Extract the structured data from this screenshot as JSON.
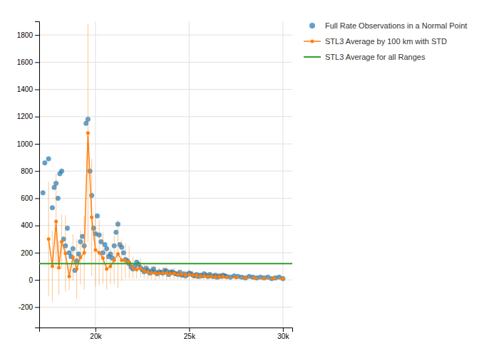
{
  "chart_data": {
    "type": "scatter",
    "xlim": [
      17000,
      30500
    ],
    "ylim": [
      -350,
      1900
    ],
    "xticks": [
      {
        "value": 20000,
        "label": "20k"
      },
      {
        "value": 25000,
        "label": "25k"
      },
      {
        "value": 30000,
        "label": "30k"
      }
    ],
    "yticks": [
      -200,
      0,
      200,
      400,
      600,
      800,
      1000,
      1200,
      1400,
      1600,
      1800
    ],
    "grid": true,
    "legend": "right",
    "series": [
      {
        "name": "Full Rate Observations in a Normal Point",
        "type": "scatter",
        "x": [
          17200,
          17300,
          17500,
          17700,
          17800,
          17900,
          18000,
          18100,
          18200,
          18300,
          18400,
          18500,
          18600,
          18700,
          18800,
          18900,
          19000,
          19100,
          19200,
          19300,
          19400,
          19500,
          19600,
          19700,
          19800,
          19900,
          20000,
          20100,
          20200,
          20300,
          20400,
          20500,
          20600,
          20700,
          20800,
          20900,
          21000,
          21100,
          21200,
          21300,
          21400,
          21500,
          21600,
          21700,
          21800,
          21900,
          22000,
          22100,
          22200,
          22300,
          22400,
          22500,
          22600,
          22700,
          22800,
          22900,
          23000,
          23100,
          23200,
          23300,
          23400,
          23500,
          23600,
          23700,
          23800,
          23900,
          24000,
          24100,
          24200,
          24300,
          24400,
          24500,
          24600,
          24700,
          24800,
          24900,
          25000,
          25100,
          25200,
          25300,
          25400,
          25500,
          25600,
          25700,
          25800,
          25900,
          26000,
          26100,
          26200,
          26300,
          26400,
          26500,
          26600,
          26700,
          26800,
          26900,
          27000,
          27200,
          27400,
          27600,
          27800,
          28000,
          28200,
          28400,
          28600,
          28800,
          29000,
          29200,
          29400,
          29600,
          29800,
          30000
        ],
        "values": [
          640,
          860,
          890,
          530,
          680,
          710,
          600,
          780,
          800,
          300,
          250,
          380,
          200,
          170,
          230,
          70,
          140,
          190,
          280,
          320,
          250,
          1150,
          1180,
          800,
          620,
          380,
          340,
          470,
          330,
          280,
          200,
          260,
          230,
          170,
          190,
          160,
          250,
          350,
          410,
          260,
          240,
          200,
          150,
          140,
          120,
          95,
          80,
          100,
          130,
          115,
          90,
          75,
          60,
          85,
          70,
          50,
          65,
          80,
          55,
          45,
          60,
          55,
          50,
          70,
          65,
          40,
          55,
          60,
          50,
          45,
          40,
          55,
          35,
          45,
          30,
          40,
          50,
          45,
          35,
          30,
          40,
          25,
          35,
          30,
          45,
          35,
          25,
          40,
          30,
          25,
          35,
          20,
          30,
          25,
          35,
          30,
          25,
          20,
          30,
          25,
          20,
          15,
          25,
          20,
          15,
          20,
          15,
          20,
          10,
          15,
          20,
          10
        ]
      },
      {
        "name": "STL3 Average by 100 km with STD",
        "type": "line",
        "marker": "circle",
        "x": [
          17500,
          17700,
          17900,
          18050,
          18200,
          18400,
          18600,
          18800,
          19000,
          19200,
          19400,
          19600,
          19800,
          20000,
          20200,
          20400,
          20600,
          20800,
          21000,
          21200,
          21400,
          21600,
          21800,
          22000,
          22200,
          22400,
          22600,
          22800,
          23000,
          23200,
          23400,
          23600,
          23800,
          24000,
          24200,
          24400,
          24600,
          24800,
          25000,
          25200,
          25400,
          25600,
          25800,
          26000,
          26200,
          26400,
          26600,
          26800,
          27000,
          27500,
          28000,
          28500,
          29000,
          29500,
          30000
        ],
        "values": [
          300,
          100,
          430,
          90,
          280,
          195,
          25,
          165,
          80,
          165,
          200,
          1080,
          460,
          220,
          200,
          160,
          80,
          100,
          145,
          190,
          145,
          140,
          130,
          90,
          75,
          85,
          65,
          58,
          52,
          50,
          48,
          52,
          50,
          45,
          48,
          40,
          44,
          36,
          40,
          36,
          32,
          28,
          30,
          26,
          28,
          22,
          24,
          26,
          20,
          18,
          16,
          14,
          13,
          14,
          10
        ],
        "errors": [
          420,
          260,
          350,
          200,
          200,
          280,
          100,
          170,
          220,
          200,
          270,
          800,
          430,
          270,
          240,
          190,
          150,
          130,
          180,
          250,
          150,
          130,
          120,
          80,
          65,
          70,
          55,
          50,
          48,
          52,
          42,
          44,
          48,
          40,
          42,
          36,
          38,
          34,
          36,
          32,
          28,
          26,
          26,
          28,
          24,
          24,
          20,
          22,
          18,
          16,
          14,
          13,
          12,
          12,
          10
        ]
      },
      {
        "name": "STL3 Average for all Ranges",
        "type": "hline",
        "values": [
          120
        ]
      }
    ]
  }
}
